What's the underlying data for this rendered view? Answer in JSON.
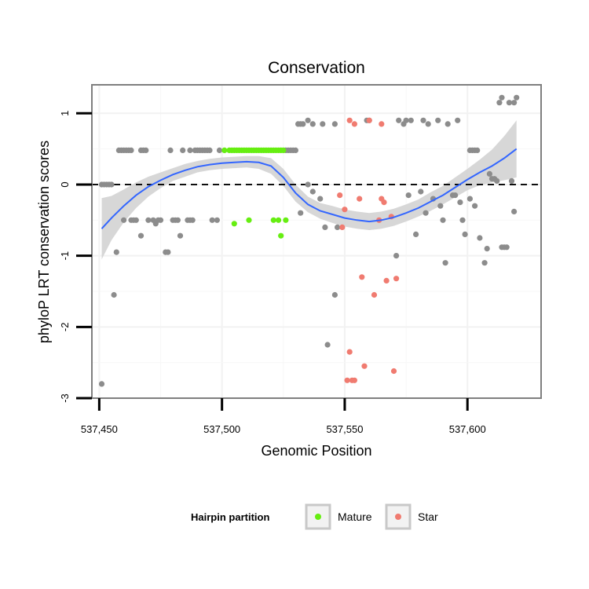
{
  "chart_data": {
    "type": "scatter",
    "title": "Conservation",
    "xlabel": "Genomic Position",
    "ylabel": "phyloP LRT conservation scores",
    "xlim": [
      537447,
      537630
    ],
    "ylim": [
      -3,
      1.4
    ],
    "x_ticks": [
      {
        "value": 537450,
        "label": "537,450"
      },
      {
        "value": 537500,
        "label": "537,500"
      },
      {
        "value": 537550,
        "label": "537,550"
      },
      {
        "value": 537600,
        "label": "537,600"
      }
    ],
    "y_ticks": [
      {
        "value": 1,
        "label": "1"
      },
      {
        "value": 0,
        "label": "0"
      },
      {
        "value": -1,
        "label": "-1"
      },
      {
        "value": -2,
        "label": "-2"
      },
      {
        "value": -3,
        "label": "-3"
      }
    ],
    "reference_line": {
      "y": 0,
      "style": "dashed"
    },
    "legend": {
      "title": "Hairpin partition",
      "position": "bottom",
      "entries": [
        {
          "label": "Mature",
          "color": "#66ee11"
        },
        {
          "label": "Star",
          "color": "#f07b70"
        }
      ]
    },
    "colors": {
      "other": "#8c8c8c",
      "Mature": "#66ee11",
      "Star": "#f07b70",
      "smooth": "#3366ff",
      "ribbon": "#d3d3d3"
    },
    "series": [
      {
        "name": "other",
        "points": [
          [
            537451,
            0
          ],
          [
            537452,
            0
          ],
          [
            537453,
            0
          ],
          [
            537454,
            0
          ],
          [
            537455,
            0
          ],
          [
            537451,
            -2.8
          ],
          [
            537456,
            -1.55
          ],
          [
            537457,
            -0.95
          ],
          [
            537458,
            0.48
          ],
          [
            537459,
            0.48
          ],
          [
            537460,
            0.48
          ],
          [
            537461,
            0.48
          ],
          [
            537462,
            0.48
          ],
          [
            537463,
            0.48
          ],
          [
            537460,
            -0.5
          ],
          [
            537463,
            -0.5
          ],
          [
            537464,
            -0.5
          ],
          [
            537465,
            -0.5
          ],
          [
            537467,
            0.48
          ],
          [
            537468,
            0.48
          ],
          [
            537469,
            0.48
          ],
          [
            537467,
            -0.72
          ],
          [
            537470,
            -0.5
          ],
          [
            537472,
            -0.5
          ],
          [
            537473,
            -0.55
          ],
          [
            537474,
            -0.5
          ],
          [
            537475,
            -0.5
          ],
          [
            537477,
            -0.95
          ],
          [
            537478,
            -0.95
          ],
          [
            537479,
            0.48
          ],
          [
            537480,
            -0.5
          ],
          [
            537481,
            -0.5
          ],
          [
            537482,
            -0.5
          ],
          [
            537483,
            -0.72
          ],
          [
            537484,
            0.48
          ],
          [
            537486,
            -0.5
          ],
          [
            537487,
            -0.5
          ],
          [
            537488,
            -0.5
          ],
          [
            537487,
            0.48
          ],
          [
            537489,
            0.48
          ],
          [
            537490,
            0.48
          ],
          [
            537491,
            0.48
          ],
          [
            537492,
            0.48
          ],
          [
            537493,
            0.48
          ],
          [
            537494,
            0.48
          ],
          [
            537495,
            0.48
          ],
          [
            537496,
            -0.5
          ],
          [
            537498,
            -0.5
          ],
          [
            537499,
            0.48
          ],
          [
            537526,
            0.48
          ],
          [
            537527,
            0.48
          ],
          [
            537528,
            0.48
          ],
          [
            537529,
            0.48
          ],
          [
            537530,
            0.48
          ],
          [
            537531,
            0.85
          ],
          [
            537532,
            0.85
          ],
          [
            537533,
            0.85
          ],
          [
            537535,
            0.9
          ],
          [
            537537,
            0.85
          ],
          [
            537541,
            0.85
          ],
          [
            537546,
            0.85
          ],
          [
            537532,
            -0.4
          ],
          [
            537535,
            0
          ],
          [
            537537,
            -0.1
          ],
          [
            537540,
            -0.2
          ],
          [
            537542,
            -0.6
          ],
          [
            537543,
            -2.25
          ],
          [
            537546,
            -1.55
          ],
          [
            537547,
            -0.6
          ],
          [
            537559,
            0.9
          ],
          [
            537560,
            0.9
          ],
          [
            537572,
            0.9
          ],
          [
            537574,
            0.85
          ],
          [
            537575,
            0.9
          ],
          [
            537577,
            0.9
          ],
          [
            537571,
            -1.0
          ],
          [
            537576,
            -0.15
          ],
          [
            537579,
            -0.7
          ],
          [
            537581,
            -0.1
          ],
          [
            537583,
            -0.4
          ],
          [
            537582,
            0.9
          ],
          [
            537584,
            0.85
          ],
          [
            537588,
            0.9
          ],
          [
            537592,
            0.85
          ],
          [
            537596,
            0.9
          ],
          [
            537586,
            -0.2
          ],
          [
            537589,
            -0.3
          ],
          [
            537590,
            -0.5
          ],
          [
            537591,
            -1.1
          ],
          [
            537594,
            -0.15
          ],
          [
            537595,
            -0.15
          ],
          [
            537597,
            -0.25
          ],
          [
            537598,
            -0.5
          ],
          [
            537599,
            -0.7
          ],
          [
            537601,
            0.48
          ],
          [
            537602,
            0.48
          ],
          [
            537603,
            0.48
          ],
          [
            537604,
            0.48
          ],
          [
            537601,
            -0.2
          ],
          [
            537603,
            -0.3
          ],
          [
            537605,
            -0.75
          ],
          [
            537607,
            -1.1
          ],
          [
            537608,
            -0.9
          ],
          [
            537609,
            0.15
          ],
          [
            537610,
            0.08
          ],
          [
            537611,
            0.08
          ],
          [
            537612,
            0.05
          ],
          [
            537613,
            1.15
          ],
          [
            537614,
            1.22
          ],
          [
            537614,
            -0.88
          ],
          [
            537615,
            -0.88
          ],
          [
            537616,
            -0.88
          ],
          [
            537617,
            1.15
          ],
          [
            537618,
            0.05
          ],
          [
            537619,
            -0.38
          ],
          [
            537619,
            1.15
          ],
          [
            537620,
            1.22
          ]
        ]
      },
      {
        "name": "Mature",
        "points": [
          [
            537501,
            0.48
          ],
          [
            537503,
            0.48
          ],
          [
            537504,
            0.48
          ],
          [
            537505,
            0.48
          ],
          [
            537506,
            0.48
          ],
          [
            537507,
            0.48
          ],
          [
            537508,
            0.48
          ],
          [
            537509,
            0.48
          ],
          [
            537510,
            0.48
          ],
          [
            537511,
            0.48
          ],
          [
            537512,
            0.48
          ],
          [
            537513,
            0.48
          ],
          [
            537514,
            0.48
          ],
          [
            537515,
            0.48
          ],
          [
            537516,
            0.48
          ],
          [
            537517,
            0.48
          ],
          [
            537518,
            0.48
          ],
          [
            537519,
            0.48
          ],
          [
            537520,
            0.48
          ],
          [
            537521,
            0.48
          ],
          [
            537522,
            0.48
          ],
          [
            537523,
            0.48
          ],
          [
            537524,
            0.48
          ],
          [
            537525,
            0.48
          ],
          [
            537505,
            -0.55
          ],
          [
            537511,
            -0.5
          ],
          [
            537521,
            -0.5
          ],
          [
            537523,
            -0.5
          ],
          [
            537524,
            -0.72
          ],
          [
            537526,
            -0.5
          ]
        ]
      },
      {
        "name": "Star",
        "points": [
          [
            537548,
            -0.15
          ],
          [
            537549,
            -0.6
          ],
          [
            537550,
            -0.35
          ],
          [
            537551,
            -2.75
          ],
          [
            537552,
            -2.35
          ],
          [
            537553,
            -2.75
          ],
          [
            537554,
            -2.75
          ],
          [
            537552,
            0.9
          ],
          [
            537554,
            0.85
          ],
          [
            537556,
            -0.2
          ],
          [
            537557,
            -1.3
          ],
          [
            537558,
            -2.55
          ],
          [
            537560,
            0.9
          ],
          [
            537562,
            -1.55
          ],
          [
            537564,
            -0.5
          ],
          [
            537565,
            -0.2
          ],
          [
            537565,
            0.85
          ],
          [
            537566,
            -0.25
          ],
          [
            537567,
            -1.35
          ],
          [
            537569,
            -0.45
          ],
          [
            537570,
            -2.62
          ],
          [
            537571,
            -1.32
          ]
        ]
      }
    ],
    "smooth_curve": {
      "method": "loess",
      "fit": [
        [
          537451,
          -0.62
        ],
        [
          537455,
          -0.47
        ],
        [
          537460,
          -0.3
        ],
        [
          537465,
          -0.15
        ],
        [
          537470,
          -0.03
        ],
        [
          537475,
          0.06
        ],
        [
          537480,
          0.14
        ],
        [
          537485,
          0.2
        ],
        [
          537490,
          0.25
        ],
        [
          537495,
          0.28
        ],
        [
          537500,
          0.3
        ],
        [
          537505,
          0.31
        ],
        [
          537510,
          0.32
        ],
        [
          537515,
          0.31
        ],
        [
          537520,
          0.26
        ],
        [
          537525,
          0.1
        ],
        [
          537530,
          -0.12
        ],
        [
          537535,
          -0.28
        ],
        [
          537540,
          -0.37
        ],
        [
          537545,
          -0.42
        ],
        [
          537550,
          -0.47
        ],
        [
          537555,
          -0.5
        ],
        [
          537560,
          -0.52
        ],
        [
          537565,
          -0.5
        ],
        [
          537570,
          -0.46
        ],
        [
          537575,
          -0.4
        ],
        [
          537580,
          -0.33
        ],
        [
          537585,
          -0.24
        ],
        [
          537590,
          -0.15
        ],
        [
          537595,
          -0.04
        ],
        [
          537600,
          0.07
        ],
        [
          537605,
          0.17
        ],
        [
          537610,
          0.26
        ],
        [
          537615,
          0.37
        ],
        [
          537620,
          0.5
        ]
      ],
      "lower": [
        [
          537451,
          -1.05
        ],
        [
          537455,
          -0.78
        ],
        [
          537460,
          -0.53
        ],
        [
          537465,
          -0.33
        ],
        [
          537470,
          -0.17
        ],
        [
          537475,
          -0.05
        ],
        [
          537480,
          0.05
        ],
        [
          537485,
          0.11
        ],
        [
          537490,
          0.17
        ],
        [
          537495,
          0.2
        ],
        [
          537500,
          0.22
        ],
        [
          537505,
          0.23
        ],
        [
          537510,
          0.24
        ],
        [
          537515,
          0.22
        ],
        [
          537520,
          0.15
        ],
        [
          537525,
          -0.02
        ],
        [
          537530,
          -0.24
        ],
        [
          537535,
          -0.39
        ],
        [
          537540,
          -0.48
        ],
        [
          537545,
          -0.54
        ],
        [
          537550,
          -0.59
        ],
        [
          537555,
          -0.62
        ],
        [
          537560,
          -0.64
        ],
        [
          537565,
          -0.62
        ],
        [
          537570,
          -0.58
        ],
        [
          537575,
          -0.52
        ],
        [
          537580,
          -0.45
        ],
        [
          537585,
          -0.37
        ],
        [
          537590,
          -0.28
        ],
        [
          537595,
          -0.18
        ],
        [
          537600,
          -0.08
        ],
        [
          537605,
          -0.01
        ],
        [
          537610,
          0.03
        ],
        [
          537615,
          0.06
        ],
        [
          537620,
          0.1
        ]
      ],
      "upper": [
        [
          537451,
          -0.19
        ],
        [
          537455,
          -0.16
        ],
        [
          537460,
          -0.07
        ],
        [
          537465,
          0.03
        ],
        [
          537470,
          0.11
        ],
        [
          537475,
          0.17
        ],
        [
          537480,
          0.23
        ],
        [
          537485,
          0.29
        ],
        [
          537490,
          0.33
        ],
        [
          537495,
          0.36
        ],
        [
          537500,
          0.38
        ],
        [
          537505,
          0.39
        ],
        [
          537510,
          0.4
        ],
        [
          537515,
          0.4
        ],
        [
          537520,
          0.37
        ],
        [
          537525,
          0.22
        ],
        [
          537530,
          0
        ],
        [
          537535,
          -0.17
        ],
        [
          537540,
          -0.26
        ],
        [
          537545,
          -0.3
        ],
        [
          537550,
          -0.35
        ],
        [
          537555,
          -0.38
        ],
        [
          537560,
          -0.4
        ],
        [
          537565,
          -0.38
        ],
        [
          537570,
          -0.34
        ],
        [
          537575,
          -0.28
        ],
        [
          537580,
          -0.21
        ],
        [
          537585,
          -0.11
        ],
        [
          537590,
          -0.02
        ],
        [
          537595,
          0.1
        ],
        [
          537600,
          0.22
        ],
        [
          537605,
          0.35
        ],
        [
          537610,
          0.49
        ],
        [
          537615,
          0.68
        ],
        [
          537620,
          0.9
        ]
      ]
    }
  }
}
